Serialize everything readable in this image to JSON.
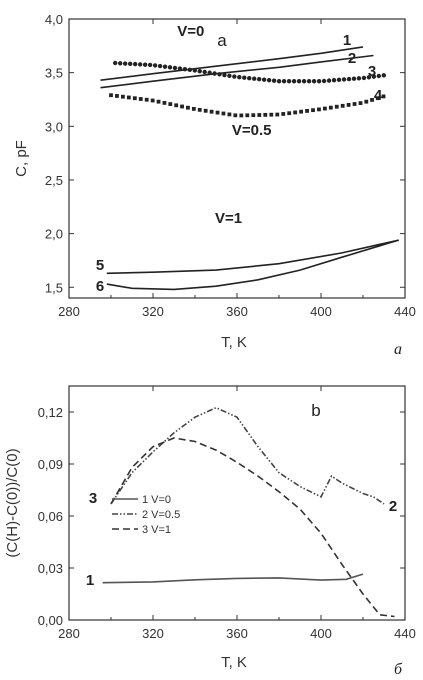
{
  "chart_data": [
    {
      "type": "line",
      "panel_letter": "a",
      "sub_label": "a",
      "xlabel": "T, K",
      "ylabel": "C, pF",
      "xlim": [
        280,
        440
      ],
      "ylim": [
        1.4,
        4.0
      ],
      "x_ticks": [
        280,
        320,
        360,
        400,
        440
      ],
      "y_ticks": [
        1.5,
        2.0,
        2.5,
        3.0,
        3.5,
        4.0
      ],
      "x_tick_labels": [
        "280",
        "320",
        "360",
        "400",
        "440"
      ],
      "y_tick_labels": [
        "1,5",
        "2,0",
        "2,5",
        "3,0",
        "3,5",
        "4,0"
      ],
      "grid": false,
      "annotations": [
        {
          "text": "V=0",
          "x": 338,
          "y": 3.84
        },
        {
          "text": "V=0.5",
          "x": 367,
          "y": 2.92
        },
        {
          "text": "V=1",
          "x": 356,
          "y": 2.1
        }
      ],
      "series": [
        {
          "label": "1",
          "style": "solid",
          "x": [
            295,
            320,
            350,
            380,
            400,
            420
          ],
          "y": [
            3.43,
            3.49,
            3.56,
            3.63,
            3.68,
            3.74
          ]
        },
        {
          "label": "2",
          "style": "solid",
          "x": [
            295,
            320,
            350,
            380,
            400,
            425
          ],
          "y": [
            3.36,
            3.42,
            3.49,
            3.55,
            3.6,
            3.66
          ]
        },
        {
          "label": "3",
          "style": "dotted",
          "x": [
            302,
            320,
            340,
            360,
            380,
            400,
            420,
            432
          ],
          "y": [
            3.59,
            3.57,
            3.52,
            3.46,
            3.42,
            3.42,
            3.45,
            3.48
          ]
        },
        {
          "label": "4",
          "style": "square-dotted",
          "x": [
            300,
            320,
            340,
            360,
            380,
            400,
            420,
            430
          ],
          "y": [
            3.29,
            3.24,
            3.16,
            3.1,
            3.11,
            3.16,
            3.22,
            3.28
          ]
        },
        {
          "label": "5",
          "style": "solid",
          "x": [
            298,
            320,
            350,
            380,
            410,
            437
          ],
          "y": [
            1.63,
            1.64,
            1.66,
            1.72,
            1.82,
            1.94
          ]
        },
        {
          "label": "6",
          "style": "solid",
          "x": [
            298,
            310,
            330,
            350,
            370,
            390,
            410,
            437
          ],
          "y": [
            1.53,
            1.49,
            1.48,
            1.51,
            1.57,
            1.66,
            1.78,
            1.94
          ]
        }
      ]
    },
    {
      "type": "line",
      "panel_letter": "b",
      "sub_label": "б",
      "xlabel": "T, K",
      "ylabel": "(C(H)-C(0))/C(0)",
      "xlim": [
        280,
        440
      ],
      "ylim": [
        0,
        0.135
      ],
      "x_ticks": [
        280,
        320,
        360,
        400,
        440
      ],
      "y_ticks": [
        0,
        0.03,
        0.06,
        0.09,
        0.12
      ],
      "x_tick_labels": [
        "280",
        "320",
        "360",
        "400",
        "440"
      ],
      "y_tick_labels": [
        "0,00",
        "0,03",
        "0,06",
        "0,09",
        "0,12"
      ],
      "grid": false,
      "legend": {
        "position": "center-left",
        "entries": [
          {
            "number": "1",
            "text": "V=0"
          },
          {
            "number": "2",
            "text": "V=0.5"
          },
          {
            "number": "3",
            "text": "V=1"
          }
        ]
      },
      "series": [
        {
          "label": "1",
          "legend": "1 V=0",
          "style": "solid",
          "color": "#555555",
          "x": [
            296,
            320,
            340,
            360,
            380,
            400,
            412,
            420
          ],
          "y": [
            0.0215,
            0.022,
            0.0232,
            0.024,
            0.0243,
            0.023,
            0.0235,
            0.0265
          ]
        },
        {
          "label": "2",
          "legend": "2 V=0.5",
          "style": "dash-dot-dot",
          "color": "#444444",
          "x": [
            300,
            310,
            320,
            330,
            340,
            350,
            360,
            370,
            380,
            390,
            400,
            405,
            410,
            420,
            425,
            430
          ],
          "y": [
            0.067,
            0.085,
            0.097,
            0.108,
            0.117,
            0.1225,
            0.117,
            0.1,
            0.085,
            0.077,
            0.071,
            0.083,
            0.079,
            0.073,
            0.071,
            0.067
          ]
        },
        {
          "label": "3",
          "legend": "3 V=1",
          "style": "dashed",
          "color": "#333333",
          "x": [
            300,
            310,
            320,
            330,
            340,
            350,
            360,
            370,
            380,
            390,
            400,
            410,
            420,
            428,
            435
          ],
          "y": [
            0.067,
            0.088,
            0.1,
            0.105,
            0.103,
            0.098,
            0.091,
            0.083,
            0.074,
            0.064,
            0.05,
            0.032,
            0.015,
            0.003,
            0.002
          ]
        }
      ]
    }
  ]
}
